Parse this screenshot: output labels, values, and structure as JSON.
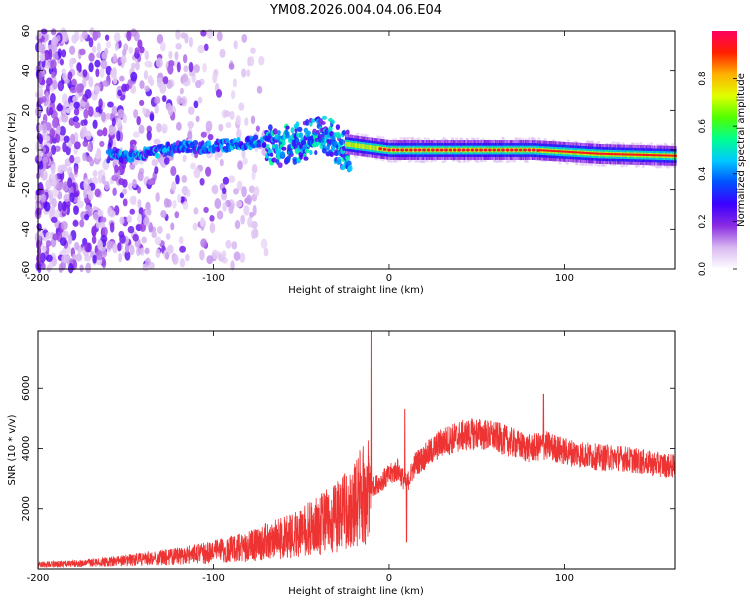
{
  "title": "YM08.2026.004.04.06.E04",
  "chart_data": [
    {
      "type": "heatmap",
      "xlabel": "Height of straight line (km)",
      "ylabel": "Frequency (Hz)",
      "xlim": [
        -200,
        163
      ],
      "ylim": [
        -60,
        60
      ],
      "xticks": [
        -200,
        -100,
        0,
        100
      ],
      "yticks": [
        -60,
        -40,
        -20,
        0,
        20,
        40,
        60
      ],
      "colorbar": {
        "label": "Normalized spectral amplitude",
        "range": [
          0,
          1
        ],
        "ticks": [
          0.0,
          0.2,
          0.4,
          0.6,
          0.8
        ],
        "colormap": [
          "#ffffff",
          "#d8b8f0",
          "#8a2be2",
          "#3c00ff",
          "#0050ff",
          "#00c8ff",
          "#00ff90",
          "#50ff00",
          "#e0ff00",
          "#ffb000",
          "#ff2000",
          "#ff0060"
        ]
      },
      "features": {
        "noise_region_x": [
          -200,
          -95
        ],
        "signal_track": [
          [
            -150,
            -3
          ],
          [
            -120,
            1
          ],
          [
            -95,
            2
          ],
          [
            -75,
            4
          ],
          [
            -55,
            6
          ],
          [
            -35,
            10
          ],
          [
            -25,
            3
          ],
          [
            0,
            0
          ],
          [
            40,
            0
          ],
          [
            82,
            0
          ],
          [
            120,
            -2
          ],
          [
            163,
            -3
          ]
        ]
      }
    },
    {
      "type": "line",
      "xlabel": "Height of straight line (km)",
      "ylabel": "SNR (10 * v/v)",
      "xlim": [
        -200,
        163
      ],
      "ylim": [
        0,
        7900
      ],
      "xticks": [
        -200,
        -100,
        0,
        100
      ],
      "yticks": [
        2000,
        4000,
        6000
      ],
      "color": "#ee3333",
      "series_envelope": {
        "x": [
          -200,
          -180,
          -160,
          -140,
          -120,
          -100,
          -80,
          -60,
          -45,
          -30,
          -20,
          -15,
          -10,
          -5,
          0,
          5,
          10,
          15,
          20,
          30,
          40,
          50,
          60,
          70,
          80,
          90,
          100,
          110,
          120,
          130,
          140,
          150,
          163
        ],
        "y": [
          150,
          180,
          250,
          350,
          450,
          600,
          800,
          1100,
          1400,
          1800,
          2200,
          2600,
          2700,
          2900,
          3100,
          3300,
          2800,
          3500,
          3700,
          4200,
          4400,
          4500,
          4400,
          4200,
          4000,
          4100,
          3900,
          3800,
          3700,
          3700,
          3600,
          3500,
          3400
        ]
      },
      "spikes": [
        {
          "x": -10,
          "y": 7900
        },
        {
          "x": 9,
          "y": 5300
        },
        {
          "x": 88,
          "y": 5800
        },
        {
          "x": 10,
          "y": 900
        }
      ]
    }
  ]
}
